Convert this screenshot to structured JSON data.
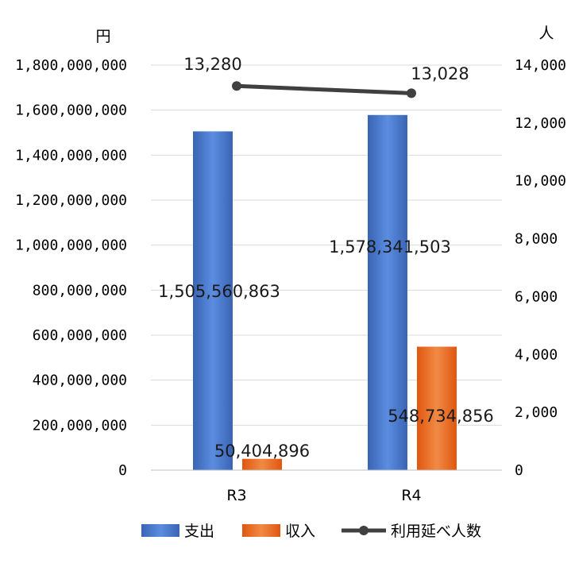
{
  "chart_data": {
    "type": "bar",
    "categories": [
      "R3",
      "R4"
    ],
    "series": [
      {
        "name": "支出",
        "kind": "bar",
        "axis": "left",
        "color": "#4472C4",
        "values": [
          1505560863,
          1578341503
        ],
        "value_labels": [
          "1,505,560,863",
          "1,578,341,503"
        ]
      },
      {
        "name": "収入",
        "kind": "bar",
        "axis": "left",
        "color": "#ED7D31",
        "values": [
          50404896,
          548734856
        ],
        "value_labels": [
          "50,404,896",
          "548,734,856"
        ]
      },
      {
        "name": "利用延べ人数",
        "kind": "line",
        "axis": "right",
        "color": "#404040",
        "values": [
          13280,
          13028
        ],
        "value_labels": [
          "13,280",
          "13,028"
        ]
      }
    ],
    "y_left": {
      "unit": "円",
      "range": [
        0,
        1800000000
      ],
      "ticks": [
        "0",
        "200,000,000",
        "400,000,000",
        "600,000,000",
        "800,000,000",
        "1,000,000,000",
        "1,200,000,000",
        "1,400,000,000",
        "1,600,000,000",
        "1,800,000,000"
      ]
    },
    "y_right": {
      "unit": "人",
      "range": [
        0,
        14000
      ],
      "ticks": [
        "0",
        "2,000",
        "4,000",
        "6,000",
        "8,000",
        "10,000",
        "12,000",
        "14,000"
      ]
    },
    "grid": true,
    "legend_position": "bottom"
  }
}
